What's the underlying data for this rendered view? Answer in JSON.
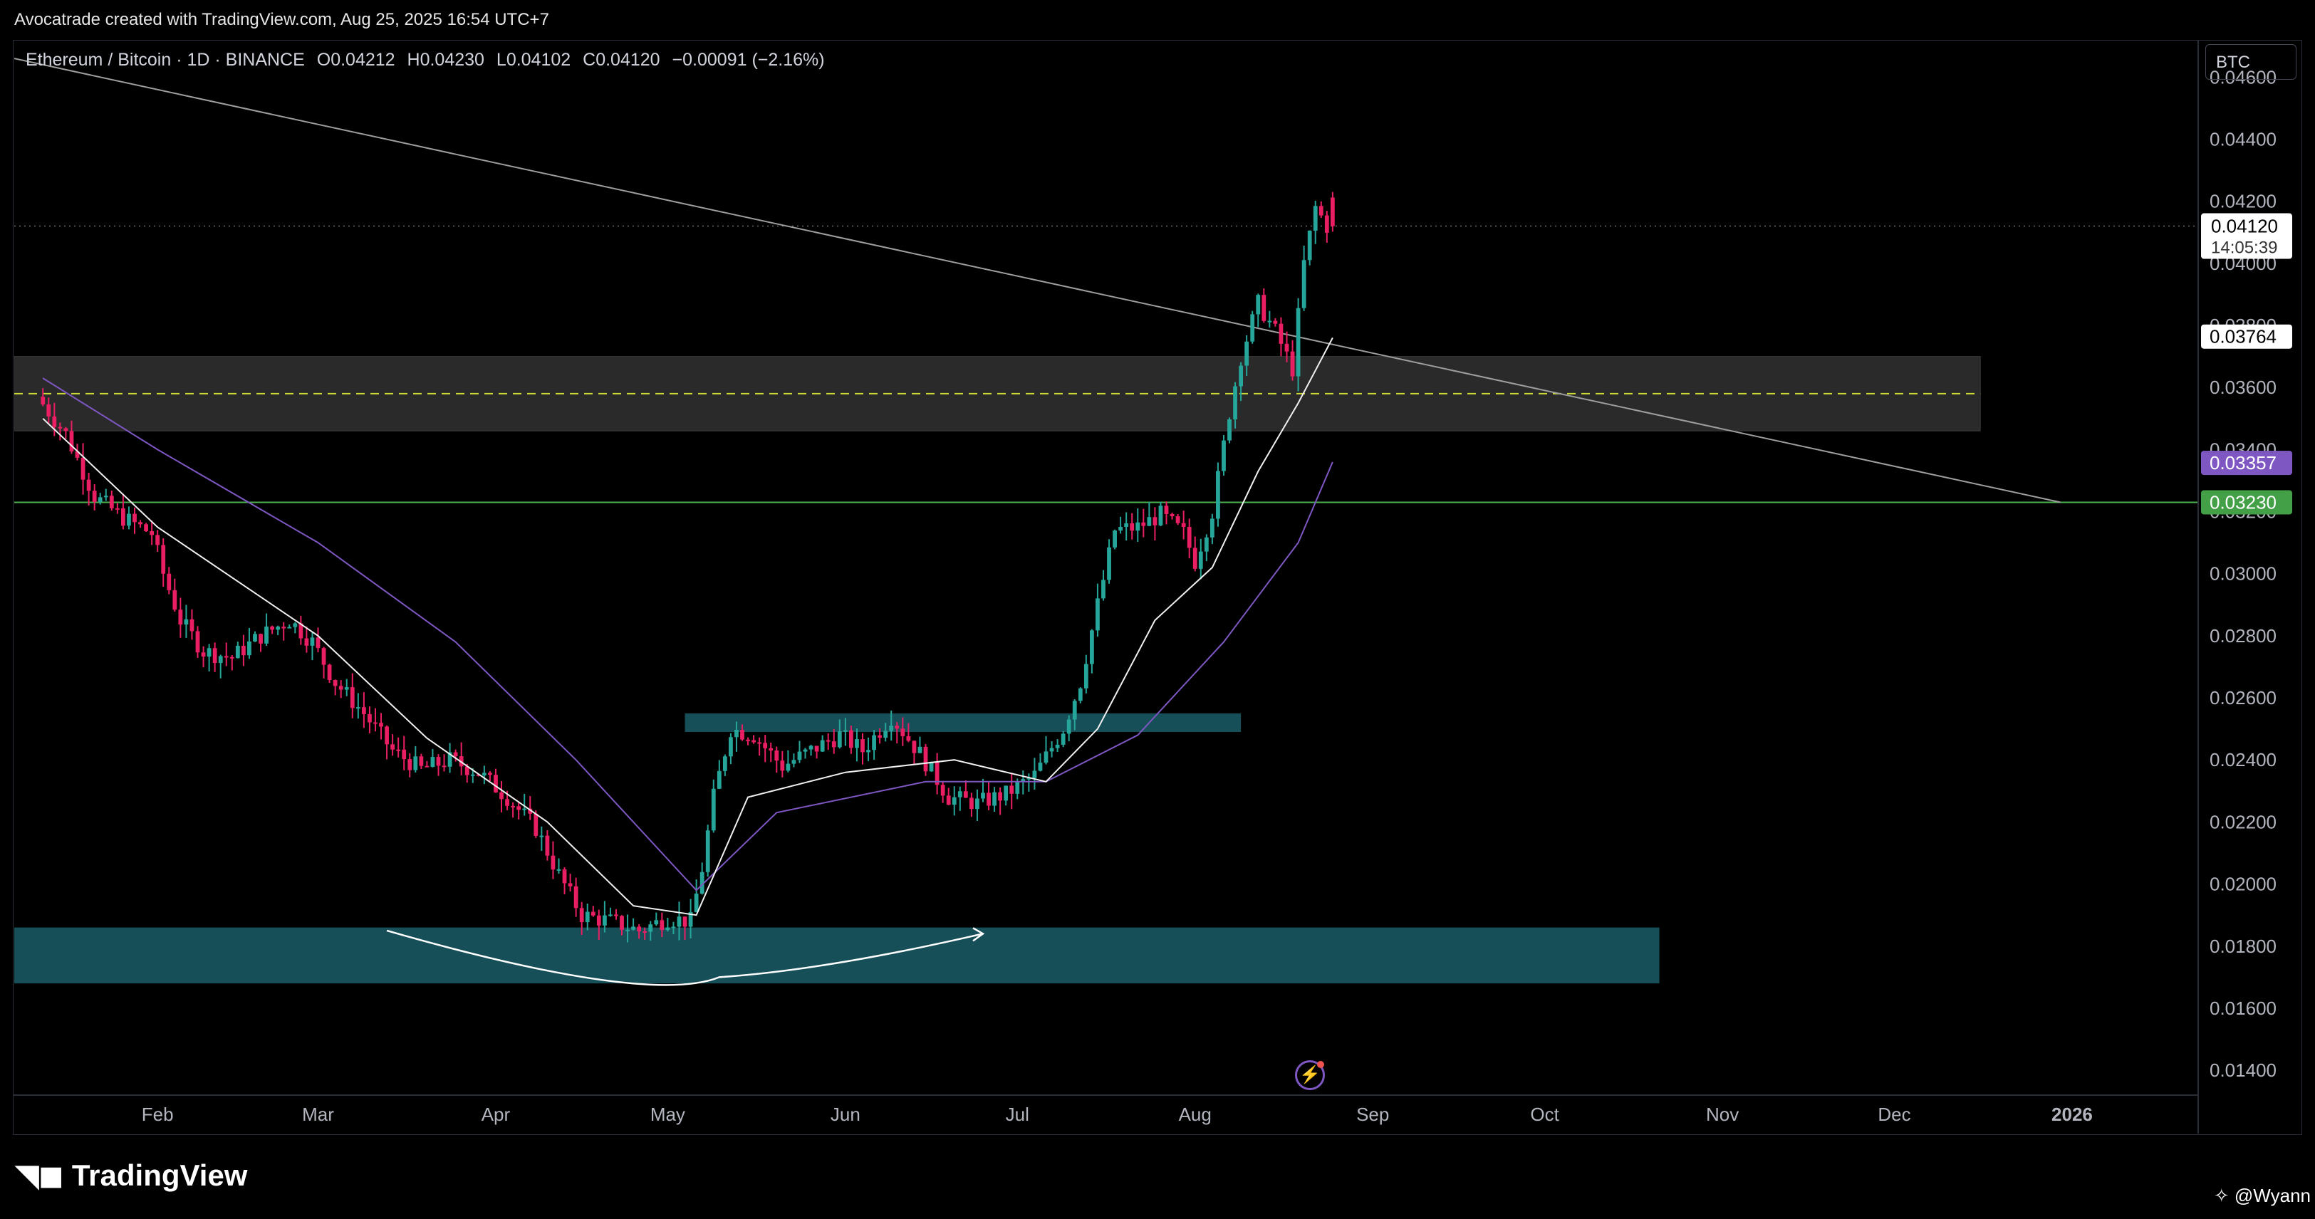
{
  "header": {
    "credit": "Avocatrade created with TradingView.com, Aug 25, 2025 16:54 UTC+7"
  },
  "legend": {
    "symbol": "Ethereum / Bitcoin · 1D · BINANCE",
    "open": "O0.04212",
    "high": "H0.04230",
    "low": "L0.04102",
    "close": "C0.04120",
    "change": "−0.00091 (−2.16%)"
  },
  "unit_button": "BTC",
  "price_labels": {
    "last": "0.04120",
    "countdown": "14:05:39",
    "ma_fast": "0.03764",
    "ma_slow": "0.03357",
    "support": "0.03230"
  },
  "footer": {
    "logo": "TradingView",
    "user": "@Wyann"
  },
  "colors": {
    "up": "#26a69a",
    "down": "#e91e63",
    "ma_fast": "#f0f0f0",
    "ma_slow": "#7e57c2",
    "support": "#4caf50",
    "zone_teal": "#164f58",
    "zone_grey": "#2a2a2a",
    "dashed": "#cddc39",
    "trendline": "#9e9e9e"
  },
  "chart_data": {
    "type": "candlestick",
    "pair": "Ethereum / Bitcoin",
    "timeframe": "1D",
    "exchange": "BINANCE",
    "y_axis_ticks": [
      "0.04600",
      "0.04400",
      "0.04200",
      "0.04000",
      "0.03800",
      "0.03600",
      "0.03400",
      "0.03200",
      "0.03000",
      "0.02800",
      "0.02600",
      "0.02400",
      "0.02200",
      "0.02000",
      "0.01800",
      "0.01600",
      "0.01400"
    ],
    "ylim": [
      0.0132,
      0.0472
    ],
    "x_axis_ticks": [
      "Feb",
      "Mar",
      "Apr",
      "May",
      "Jun",
      "Jul",
      "Aug",
      "Sep",
      "Oct",
      "Nov",
      "Dec",
      "2026"
    ],
    "ohlc_last": {
      "open": 0.04212,
      "high": 0.0423,
      "low": 0.04102,
      "close": 0.0412
    },
    "close_path": [
      [
        "2025-01-12",
        0.0357
      ],
      [
        "2025-01-17",
        0.0345
      ],
      [
        "2025-01-22",
        0.0325
      ],
      [
        "2025-01-27",
        0.0318
      ],
      [
        "2025-02-01",
        0.0313
      ],
      [
        "2025-02-03",
        0.03
      ],
      [
        "2025-02-06",
        0.0285
      ],
      [
        "2025-02-10",
        0.0275
      ],
      [
        "2025-02-15",
        0.0273
      ],
      [
        "2025-02-20",
        0.028
      ],
      [
        "2025-02-25",
        0.0285
      ],
      [
        "2025-03-01",
        0.0278
      ],
      [
        "2025-03-05",
        0.0265
      ],
      [
        "2025-03-10",
        0.0255
      ],
      [
        "2025-03-15",
        0.0243
      ],
      [
        "2025-03-20",
        0.0237
      ],
      [
        "2025-03-25",
        0.024
      ],
      [
        "2025-03-30",
        0.0236
      ],
      [
        "2025-04-04",
        0.0228
      ],
      [
        "2025-04-09",
        0.0218
      ],
      [
        "2025-04-13",
        0.0203
      ],
      [
        "2025-04-17",
        0.019
      ],
      [
        "2025-04-22",
        0.0188
      ],
      [
        "2025-04-27",
        0.0185
      ],
      [
        "2025-05-02",
        0.0189
      ],
      [
        "2025-05-06",
        0.0188
      ],
      [
        "2025-05-08",
        0.0205
      ],
      [
        "2025-05-10",
        0.0228
      ],
      [
        "2025-05-13",
        0.025
      ],
      [
        "2025-05-17",
        0.0248
      ],
      [
        "2025-05-22",
        0.0238
      ],
      [
        "2025-05-27",
        0.0243
      ],
      [
        "2025-06-01",
        0.0248
      ],
      [
        "2025-06-05",
        0.0243
      ],
      [
        "2025-06-10",
        0.0254
      ],
      [
        "2025-06-15",
        0.0242
      ],
      [
        "2025-06-20",
        0.0228
      ],
      [
        "2025-06-25",
        0.0226
      ],
      [
        "2025-06-30",
        0.0229
      ],
      [
        "2025-07-05",
        0.0235
      ],
      [
        "2025-07-10",
        0.025
      ],
      [
        "2025-07-13",
        0.0265
      ],
      [
        "2025-07-16",
        0.029
      ],
      [
        "2025-07-19",
        0.0314
      ],
      [
        "2025-07-23",
        0.0315
      ],
      [
        "2025-07-27",
        0.0319
      ],
      [
        "2025-07-31",
        0.0313
      ],
      [
        "2025-08-02",
        0.0304
      ],
      [
        "2025-08-05",
        0.032
      ],
      [
        "2025-08-08",
        0.0352
      ],
      [
        "2025-08-10",
        0.037
      ],
      [
        "2025-08-13",
        0.0387
      ],
      [
        "2025-08-16",
        0.0378
      ],
      [
        "2025-08-19",
        0.0366
      ],
      [
        "2025-08-21",
        0.04
      ],
      [
        "2025-08-23",
        0.0418
      ],
      [
        "2025-08-25",
        0.0412
      ]
    ],
    "ma_fast_path": [
      [
        "2025-01-12",
        0.035
      ],
      [
        "2025-02-01",
        0.0315
      ],
      [
        "2025-03-01",
        0.028
      ],
      [
        "2025-03-20",
        0.0247
      ],
      [
        "2025-04-10",
        0.022
      ],
      [
        "2025-04-25",
        0.0193
      ],
      [
        "2025-05-06",
        0.019
      ],
      [
        "2025-05-15",
        0.0228
      ],
      [
        "2025-06-01",
        0.0236
      ],
      [
        "2025-06-20",
        0.024
      ],
      [
        "2025-07-06",
        0.0233
      ],
      [
        "2025-07-15",
        0.025
      ],
      [
        "2025-07-25",
        0.0285
      ],
      [
        "2025-08-04",
        0.0302
      ],
      [
        "2025-08-12",
        0.0333
      ],
      [
        "2025-08-19",
        0.0355
      ],
      [
        "2025-08-25",
        0.0376
      ]
    ],
    "ma_slow_path": [
      [
        "2025-01-12",
        0.0363
      ],
      [
        "2025-02-01",
        0.034
      ],
      [
        "2025-03-01",
        0.031
      ],
      [
        "2025-03-25",
        0.0278
      ],
      [
        "2025-04-15",
        0.024
      ],
      [
        "2025-05-06",
        0.0198
      ],
      [
        "2025-05-20",
        0.0223
      ],
      [
        "2025-06-15",
        0.0233
      ],
      [
        "2025-07-06",
        0.0233
      ],
      [
        "2025-07-22",
        0.0248
      ],
      [
        "2025-08-06",
        0.0278
      ],
      [
        "2025-08-19",
        0.031
      ],
      [
        "2025-08-25",
        0.0336
      ]
    ],
    "horizontal_levels": [
      {
        "price": 0.0323,
        "style": "solid",
        "color": "support"
      },
      {
        "price": 0.0358,
        "style": "dashed",
        "color": "dashed"
      }
    ],
    "zones": [
      {
        "from": "2025-01-07",
        "to": "2025-12-16",
        "top": 0.037,
        "bottom": 0.0346,
        "color": "zone_grey"
      },
      {
        "from": "2025-05-04",
        "to": "2025-08-09",
        "top": 0.0255,
        "bottom": 0.0249,
        "color": "zone_teal"
      },
      {
        "from": "2025-01-07",
        "to": "2025-10-21",
        "top": 0.0186,
        "bottom": 0.0168,
        "color": "zone_teal"
      }
    ],
    "trendline": {
      "from": [
        "2025-01-07",
        0.0466
      ],
      "to": [
        "2025-12-30",
        0.0323
      ]
    },
    "annotation_arrow": {
      "from": [
        "2025-03-13",
        0.0185
      ],
      "via": [
        "2025-05-10",
        0.017
      ],
      "to": [
        "2025-06-25",
        0.0184
      ]
    }
  }
}
